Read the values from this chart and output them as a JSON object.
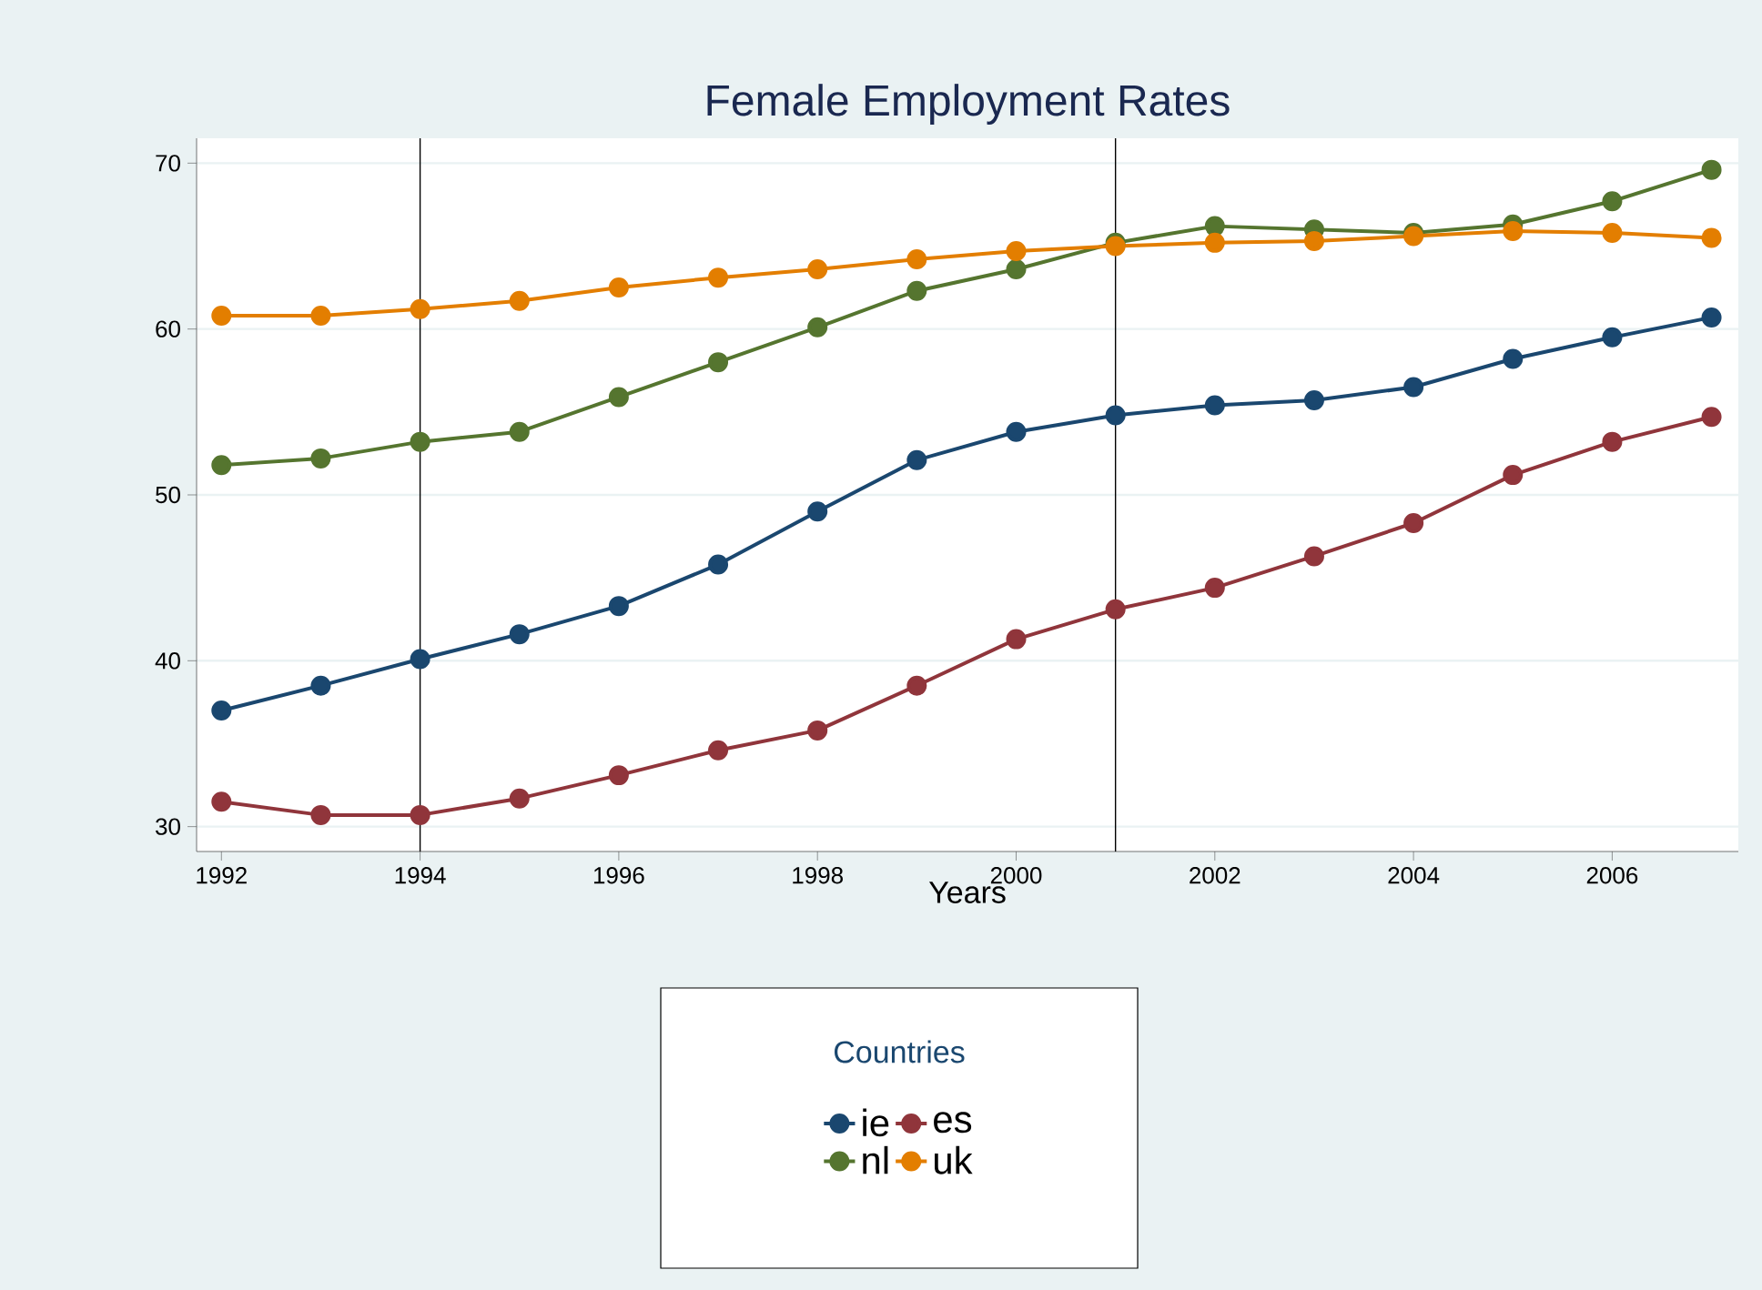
{
  "chart_data": {
    "type": "line",
    "title": "Female Employment Rates",
    "xlabel": "Years",
    "legend_title": "Countries",
    "x": [
      1992,
      1993,
      1994,
      1995,
      1996,
      1997,
      1998,
      1999,
      2000,
      2001,
      2002,
      2003,
      2004,
      2005,
      2006,
      2007
    ],
    "series": [
      {
        "name": "ie",
        "color": "#1a476f",
        "values": [
          37.0,
          38.5,
          40.1,
          41.6,
          43.3,
          45.8,
          49.0,
          52.1,
          53.8,
          54.8,
          55.4,
          55.7,
          56.5,
          58.2,
          59.5,
          60.7
        ]
      },
      {
        "name": "es",
        "color": "#90353b",
        "values": [
          31.5,
          30.7,
          30.7,
          31.7,
          33.1,
          34.6,
          35.8,
          38.5,
          41.3,
          43.1,
          44.4,
          46.3,
          48.3,
          51.2,
          53.2,
          54.7
        ]
      },
      {
        "name": "nl",
        "color": "#55752f",
        "values": [
          51.8,
          52.2,
          53.2,
          53.8,
          55.9,
          58.0,
          60.1,
          62.3,
          63.6,
          65.2,
          66.2,
          66.0,
          65.8,
          66.3,
          67.7,
          69.6
        ]
      },
      {
        "name": "uk",
        "color": "#e37e00",
        "values": [
          60.8,
          60.8,
          61.2,
          61.7,
          62.5,
          63.1,
          63.6,
          64.2,
          64.7,
          65.0,
          65.2,
          65.3,
          65.6,
          65.9,
          65.8,
          65.5
        ]
      }
    ],
    "xlim": [
      1991.75,
      2007.27
    ],
    "ylim": [
      28.5,
      71.5
    ],
    "xticks": [
      1992,
      1994,
      1996,
      1998,
      2000,
      2002,
      2004,
      2006
    ],
    "yticks": [
      30,
      40,
      50,
      60,
      70
    ],
    "ref_lines": [
      {
        "axis": "x",
        "value": 1994
      },
      {
        "axis": "x",
        "value": 2001
      }
    ],
    "grid": "y",
    "legend": "bottom",
    "marker": "circle",
    "line_style": "solid"
  }
}
